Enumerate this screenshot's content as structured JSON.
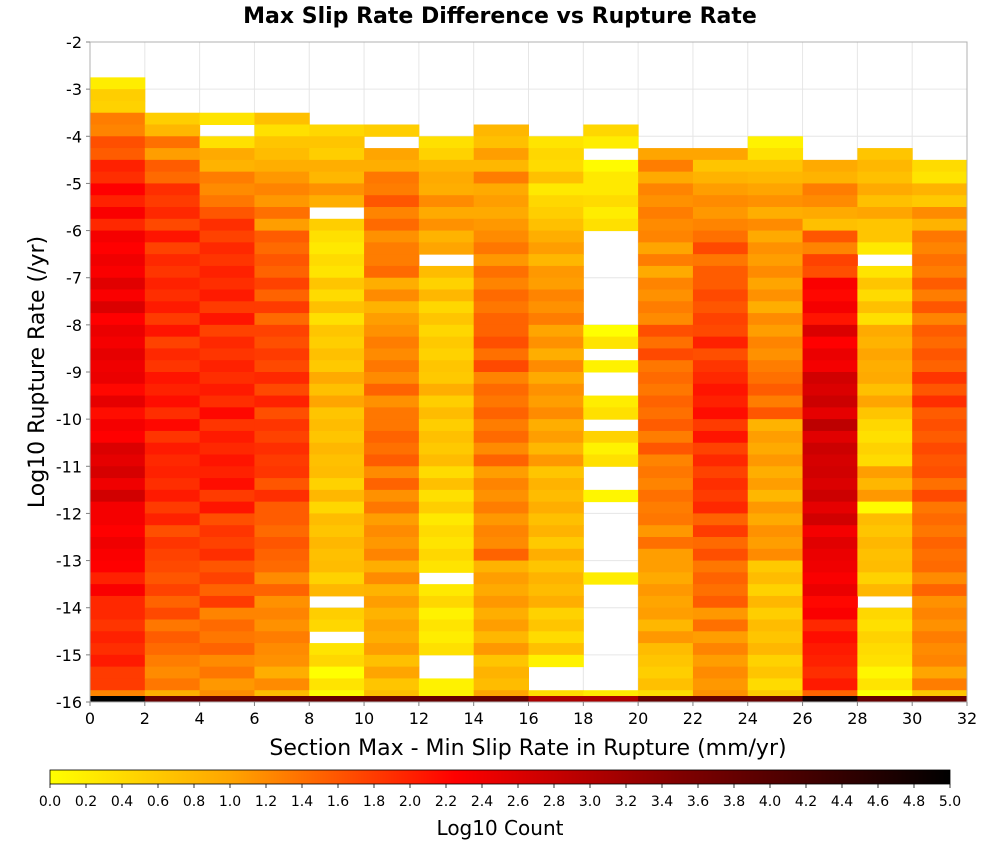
{
  "chart_data": {
    "type": "heatmap",
    "title": "Max Slip Rate Difference vs Rupture Rate",
    "xlabel": "Section Max - Min Slip Rate in Rupture (mm/yr)",
    "ylabel": "Log10 Rupture Rate (/yr)",
    "xlim": [
      0,
      32
    ],
    "ylim": [
      -16,
      -2
    ],
    "x_ticks": [
      0,
      2,
      4,
      6,
      8,
      10,
      12,
      14,
      16,
      18,
      20,
      22,
      24,
      26,
      28,
      30,
      32
    ],
    "y_ticks": [
      -2,
      -3,
      -4,
      -5,
      -6,
      -7,
      -8,
      -9,
      -10,
      -11,
      -12,
      -13,
      -14,
      -15,
      -16
    ],
    "x_bin_width": 2,
    "y_bin_height": 0.25,
    "grid": true,
    "colorbar": {
      "label": "Log10 Count",
      "range": [
        0,
        5
      ],
      "ticks": [
        "0.0",
        "0.2",
        "0.4",
        "0.6",
        "0.8",
        "1.0",
        "1.2",
        "1.4",
        "1.6",
        "1.8",
        "2.0",
        "2.2",
        "2.4",
        "2.6",
        "2.8",
        "3.0",
        "3.2",
        "3.4",
        "3.6",
        "3.8",
        "4.0",
        "4.2",
        "4.4",
        "4.6",
        "4.8",
        "5.0"
      ],
      "position": "bottom",
      "colors": [
        "#ffff00",
        "#ffa500",
        "#ff0000",
        "#800000",
        "#000000"
      ]
    },
    "columns": [
      {
        "x": 0,
        "y_top": -2.75,
        "gaps": [],
        "levels": [
          [
            -2.75,
            0.2
          ],
          [
            -3.0,
            0.4
          ],
          [
            -3.25,
            0.6
          ],
          [
            -3.5,
            1.1
          ],
          [
            -3.75,
            1.4
          ],
          [
            -4.0,
            1.6
          ],
          [
            -4.5,
            1.9
          ],
          [
            -5.0,
            2.1
          ],
          [
            -6.0,
            2.3
          ],
          [
            -7.0,
            2.4
          ],
          [
            -9.0,
            2.3
          ],
          [
            -10.5,
            2.5
          ],
          [
            -12.0,
            2.3
          ],
          [
            -13.0,
            2.1
          ],
          [
            -14.0,
            1.9
          ],
          [
            -15.5,
            1.6
          ],
          [
            -15.75,
            1.4
          ]
        ]
      },
      {
        "x": 2,
        "y_top": -3.5,
        "gaps": [],
        "levels": [
          [
            -3.5,
            0.4
          ],
          [
            -3.75,
            0.9
          ],
          [
            -4.0,
            1.2
          ],
          [
            -4.5,
            1.5
          ],
          [
            -5.0,
            1.8
          ],
          [
            -6.0,
            1.9
          ],
          [
            -7.0,
            1.9
          ],
          [
            -8.0,
            1.9
          ],
          [
            -9.0,
            2.0
          ],
          [
            -10.0,
            2.0
          ],
          [
            -11.0,
            1.9
          ],
          [
            -12.0,
            1.8
          ],
          [
            -13.0,
            1.6
          ],
          [
            -14.0,
            1.5
          ],
          [
            -15.0,
            1.2
          ],
          [
            -15.75,
            1.0
          ]
        ]
      },
      {
        "x": 4,
        "y_top": -3.5,
        "gaps": [
          [
            -3.75,
            -4.0
          ]
        ],
        "levels": [
          [
            -3.5,
            0.4
          ],
          [
            -4.0,
            0.5
          ],
          [
            -4.25,
            0.9
          ],
          [
            -4.75,
            1.2
          ],
          [
            -5.5,
            1.7
          ],
          [
            -6.0,
            1.9
          ],
          [
            -7.0,
            1.9
          ],
          [
            -9.0,
            1.9
          ],
          [
            -9.5,
            2.0
          ],
          [
            -11.0,
            2.0
          ],
          [
            -11.5,
            1.9
          ],
          [
            -12.0,
            1.8
          ],
          [
            -13.0,
            1.6
          ],
          [
            -14.0,
            1.4
          ],
          [
            -15.0,
            1.2
          ],
          [
            -15.75,
            1.0
          ]
        ]
      },
      {
        "x": 6,
        "y_top": -3.5,
        "gaps": [],
        "levels": [
          [
            -3.5,
            0.5
          ],
          [
            -4.0,
            0.6
          ],
          [
            -4.25,
            0.8
          ],
          [
            -4.75,
            1.1
          ],
          [
            -5.25,
            1.2
          ],
          [
            -6.0,
            1.5
          ],
          [
            -7.0,
            1.6
          ],
          [
            -8.0,
            1.7
          ],
          [
            -9.0,
            1.8
          ],
          [
            -10.0,
            1.8
          ],
          [
            -11.0,
            1.7
          ],
          [
            -12.0,
            1.5
          ],
          [
            -13.0,
            1.3
          ],
          [
            -14.0,
            1.2
          ],
          [
            -15.0,
            1.0
          ],
          [
            -15.75,
            0.9
          ]
        ]
      },
      {
        "x": 8,
        "y_top": -3.75,
        "gaps": [
          [
            -5.5,
            -5.75
          ],
          [
            -13.75,
            -14.0
          ],
          [
            -14.5,
            -14.75
          ]
        ],
        "levels": [
          [
            -3.75,
            0.6
          ],
          [
            -4.5,
            0.8
          ],
          [
            -5.0,
            1.0
          ],
          [
            -5.5,
            0.7
          ],
          [
            -6.0,
            0.3
          ],
          [
            -7.0,
            0.5
          ],
          [
            -8.0,
            0.6
          ],
          [
            -9.0,
            0.8
          ],
          [
            -10.0,
            0.7
          ],
          [
            -11.0,
            0.6
          ],
          [
            -12.0,
            0.7
          ],
          [
            -13.0,
            0.6
          ],
          [
            -13.75,
            0.5
          ],
          [
            -14.5,
            0.3
          ],
          [
            -15.25,
            0.1
          ],
          [
            -15.75,
            0.2
          ]
        ]
      },
      {
        "x": 10,
        "y_top": -3.75,
        "gaps": [
          [
            -4.0,
            -4.25
          ]
        ],
        "levels": [
          [
            -3.75,
            0.5
          ],
          [
            -4.25,
            0.9
          ],
          [
            -4.75,
            1.2
          ],
          [
            -5.0,
            1.4
          ],
          [
            -6.0,
            1.2
          ],
          [
            -6.5,
            1.3
          ],
          [
            -7.0,
            1.0
          ],
          [
            -8.0,
            1.2
          ],
          [
            -9.0,
            1.3
          ],
          [
            -10.0,
            1.4
          ],
          [
            -11.0,
            1.3
          ],
          [
            -12.0,
            1.1
          ],
          [
            -13.0,
            1.0
          ],
          [
            -14.0,
            0.9
          ],
          [
            -15.0,
            0.8
          ],
          [
            -15.75,
            0.7
          ]
        ]
      },
      {
        "x": 12,
        "y_top": -4.0,
        "gaps": [
          [
            -6.5,
            -6.75
          ],
          [
            -13.25,
            -13.5
          ],
          [
            -15.0,
            -15.5
          ]
        ],
        "levels": [
          [
            -4.0,
            0.4
          ],
          [
            -4.5,
            0.8
          ],
          [
            -5.0,
            1.0
          ],
          [
            -5.5,
            1.1
          ],
          [
            -6.0,
            0.9
          ],
          [
            -6.5,
            0.6
          ],
          [
            -7.0,
            0.6
          ],
          [
            -8.0,
            0.5
          ],
          [
            -9.0,
            0.7
          ],
          [
            -10.0,
            0.6
          ],
          [
            -11.0,
            0.5
          ],
          [
            -12.0,
            0.3
          ],
          [
            -13.0,
            0.4
          ],
          [
            -14.0,
            0.2
          ],
          [
            -15.0,
            0.3
          ],
          [
            -15.75,
            0.1
          ]
        ]
      },
      {
        "x": 14,
        "y_top": -3.75,
        "gaps": [],
        "levels": [
          [
            -3.75,
            0.7
          ],
          [
            -4.25,
            0.9
          ],
          [
            -4.75,
            1.1
          ],
          [
            -5.25,
            1.0
          ],
          [
            -6.0,
            1.2
          ],
          [
            -7.0,
            1.4
          ],
          [
            -8.0,
            1.5
          ],
          [
            -9.0,
            1.4
          ],
          [
            -10.0,
            1.3
          ],
          [
            -11.0,
            1.2
          ],
          [
            -12.0,
            1.1
          ],
          [
            -12.5,
            1.3
          ],
          [
            -13.0,
            1.0
          ],
          [
            -14.0,
            0.9
          ],
          [
            -15.0,
            0.8
          ],
          [
            -15.75,
            0.9
          ]
        ]
      },
      {
        "x": 16,
        "y_top": -4.0,
        "gaps": [
          [
            -15.25,
            -15.75
          ]
        ],
        "levels": [
          [
            -4.0,
            0.3
          ],
          [
            -4.5,
            0.5
          ],
          [
            -5.0,
            0.4
          ],
          [
            -5.5,
            0.6
          ],
          [
            -6.0,
            0.9
          ],
          [
            -7.0,
            1.2
          ],
          [
            -8.0,
            1.0
          ],
          [
            -9.0,
            1.1
          ],
          [
            -10.0,
            0.9
          ],
          [
            -11.0,
            0.8
          ],
          [
            -12.0,
            0.7
          ],
          [
            -13.0,
            0.8
          ],
          [
            -14.0,
            0.5
          ],
          [
            -15.0,
            0.3
          ]
        ]
      },
      {
        "x": 18,
        "y_top": -3.75,
        "gaps": [
          [
            -4.25,
            -4.5
          ],
          [
            -6.0,
            -8.0
          ],
          [
            -8.5,
            -8.75
          ],
          [
            -9.0,
            -9.5
          ],
          [
            -10.0,
            -10.25
          ],
          [
            -11.0,
            -11.5
          ],
          [
            -11.75,
            -13.25
          ],
          [
            -13.5,
            -15.75
          ]
        ],
        "levels": [
          [
            -3.75,
            0.3
          ],
          [
            -4.5,
            0.2
          ],
          [
            -5.0,
            0.3
          ],
          [
            -5.5,
            0.2
          ],
          [
            -8.0,
            0.1
          ],
          [
            -8.75,
            0.1
          ],
          [
            -9.5,
            0.2
          ],
          [
            -10.25,
            0.3
          ],
          [
            -11.5,
            0.1
          ],
          [
            -13.25,
            0.1
          ]
        ]
      },
      {
        "x": 20,
        "y_top": -4.25,
        "gaps": [],
        "levels": [
          [
            -4.25,
            1.1
          ],
          [
            -5.0,
            1.2
          ],
          [
            -6.0,
            1.1
          ],
          [
            -7.0,
            1.2
          ],
          [
            -8.0,
            1.5
          ],
          [
            -9.0,
            1.4
          ],
          [
            -10.0,
            1.4
          ],
          [
            -11.0,
            1.3
          ],
          [
            -12.0,
            1.2
          ],
          [
            -13.0,
            1.0
          ],
          [
            -14.0,
            0.9
          ],
          [
            -15.0,
            0.6
          ],
          [
            -15.75,
            0.4
          ]
        ]
      },
      {
        "x": 22,
        "y_top": -4.25,
        "gaps": [],
        "levels": [
          [
            -4.25,
            0.8
          ],
          [
            -5.0,
            1.1
          ],
          [
            -6.0,
            1.5
          ],
          [
            -7.0,
            1.6
          ],
          [
            -8.0,
            1.8
          ],
          [
            -9.0,
            2.0
          ],
          [
            -10.0,
            1.9
          ],
          [
            -11.0,
            1.8
          ],
          [
            -12.0,
            1.6
          ],
          [
            -13.0,
            1.4
          ],
          [
            -14.0,
            1.2
          ],
          [
            -15.0,
            1.1
          ],
          [
            -15.75,
            1.0
          ]
        ]
      },
      {
        "x": 24,
        "y_top": -4.0,
        "gaps": [],
        "levels": [
          [
            -4.0,
            0.3
          ],
          [
            -4.5,
            0.7
          ],
          [
            -5.0,
            1.0
          ],
          [
            -6.0,
            1.1
          ],
          [
            -7.0,
            1.0
          ],
          [
            -8.0,
            1.2
          ],
          [
            -9.0,
            1.4
          ],
          [
            -10.0,
            1.0
          ],
          [
            -11.0,
            0.9
          ],
          [
            -12.0,
            1.1
          ],
          [
            -13.0,
            0.6
          ],
          [
            -14.0,
            0.7
          ],
          [
            -15.0,
            0.5
          ],
          [
            -15.75,
            0.4
          ]
        ]
      },
      {
        "x": 26,
        "y_top": -4.5,
        "gaps": [],
        "levels": [
          [
            -4.5,
            0.9
          ],
          [
            -5.0,
            1.2
          ],
          [
            -5.5,
            0.8
          ],
          [
            -6.0,
            1.4
          ],
          [
            -6.5,
            1.7
          ],
          [
            -7.0,
            2.2
          ],
          [
            -8.0,
            2.4
          ],
          [
            -9.0,
            2.6
          ],
          [
            -10.0,
            2.7
          ],
          [
            -11.0,
            2.6
          ],
          [
            -12.0,
            2.5
          ],
          [
            -13.0,
            2.3
          ],
          [
            -14.0,
            2.1
          ],
          [
            -15.0,
            1.9
          ],
          [
            -15.75,
            1.6
          ]
        ]
      },
      {
        "x": 28,
        "y_top": -4.25,
        "gaps": [
          [
            -6.5,
            -6.75
          ],
          [
            -13.75,
            -14.0
          ]
        ],
        "levels": [
          [
            -4.25,
            0.7
          ],
          [
            -5.0,
            0.8
          ],
          [
            -6.0,
            0.6
          ],
          [
            -6.25,
            0.3
          ],
          [
            -6.75,
            0.3
          ],
          [
            -7.0,
            0.5
          ],
          [
            -8.0,
            0.9
          ],
          [
            -9.0,
            0.8
          ],
          [
            -10.0,
            0.4
          ],
          [
            -11.0,
            0.9
          ],
          [
            -11.75,
            0.2
          ],
          [
            -12.0,
            0.7
          ],
          [
            -13.0,
            0.6
          ],
          [
            -14.0,
            0.4
          ],
          [
            -15.0,
            0.2
          ],
          [
            -15.5,
            0.1
          ]
        ]
      },
      {
        "x": 30,
        "y_top": -4.5,
        "gaps": [],
        "levels": [
          [
            -4.5,
            0.3
          ],
          [
            -5.0,
            0.7
          ],
          [
            -5.5,
            1.0
          ],
          [
            -6.0,
            1.3
          ],
          [
            -7.0,
            1.4
          ],
          [
            -8.0,
            1.5
          ],
          [
            -9.0,
            1.7
          ],
          [
            -10.0,
            1.6
          ],
          [
            -11.0,
            1.5
          ],
          [
            -12.0,
            1.4
          ],
          [
            -13.0,
            1.3
          ],
          [
            -14.0,
            1.2
          ],
          [
            -15.0,
            1.1
          ],
          [
            -15.75,
            0.8
          ]
        ]
      }
    ],
    "bottom_row": {
      "y": -16,
      "values": [
        5.0,
        3.8,
        3.8,
        3.8,
        3.8,
        3.8,
        3.8,
        3.8,
        3.1,
        3.1,
        3.8,
        3.8,
        3.8,
        4.8,
        3.8,
        3.8
      ]
    }
  }
}
